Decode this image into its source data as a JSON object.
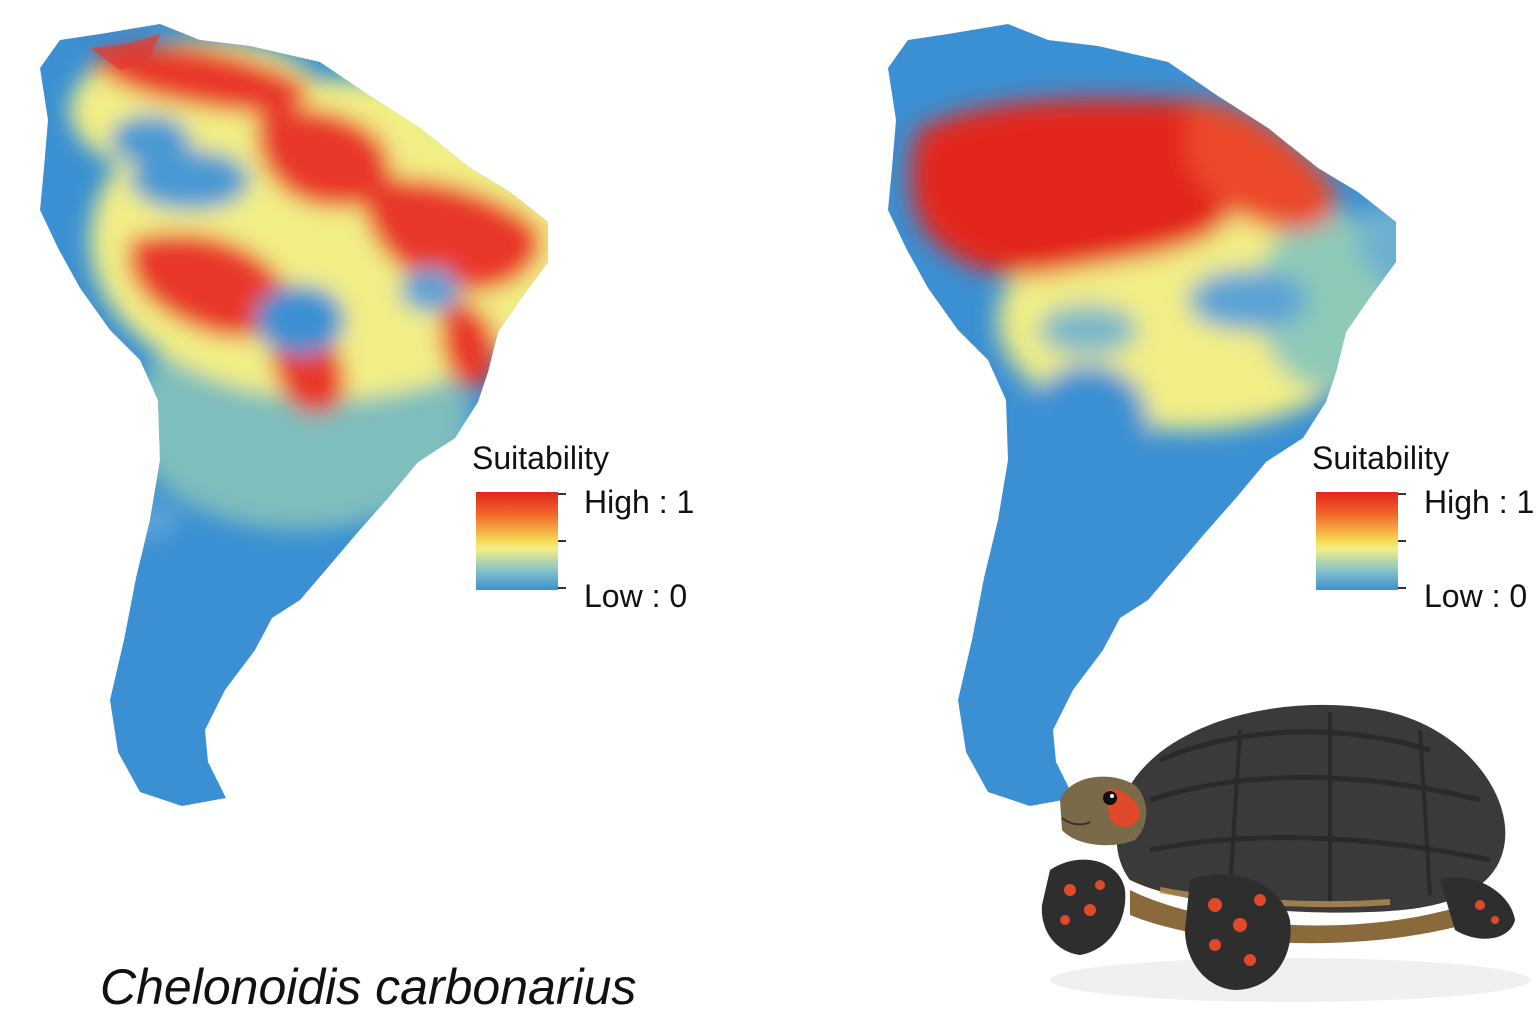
{
  "maps": [
    {
      "id": "left",
      "legend": {
        "title": "Suitability",
        "high_label": "High : 1",
        "low_label": "Low : 0"
      }
    },
    {
      "id": "right",
      "legend": {
        "title": "Suitability",
        "high_label": "High : 1",
        "low_label": "Low : 0"
      }
    }
  ],
  "species": "Chelonoidis carbonarius",
  "colors": {
    "high": "#e3261d",
    "mid_high": "#f2632a",
    "mid": "#f7d24f",
    "low": "#3b90d3"
  }
}
